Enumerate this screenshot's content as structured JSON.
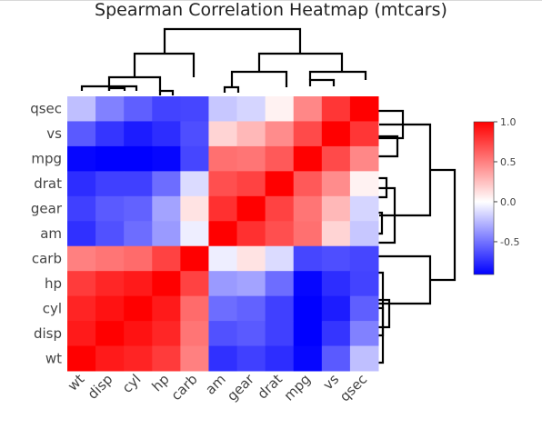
{
  "chart_data": {
    "type": "heatmap",
    "title": "Spearman Correlation Heatmap (mtcars)",
    "rows": [
      "qsec",
      "vs",
      "mpg",
      "drat",
      "gear",
      "am",
      "carb",
      "hp",
      "cyl",
      "disp",
      "wt"
    ],
    "columns": [
      "wt",
      "disp",
      "cyl",
      "hp",
      "carb",
      "am",
      "gear",
      "drat",
      "mpg",
      "vs",
      "qsec"
    ],
    "values": [
      [
        -0.23,
        -0.45,
        -0.57,
        -0.67,
        -0.66,
        -0.2,
        -0.15,
        0.05,
        0.47,
        0.79,
        1.0
      ],
      [
        -0.59,
        -0.72,
        -0.81,
        -0.75,
        -0.63,
        0.17,
        0.28,
        0.45,
        0.71,
        1.0,
        0.79
      ],
      [
        -0.89,
        -0.91,
        -0.91,
        -0.89,
        -0.66,
        0.56,
        0.54,
        0.65,
        1.0,
        0.71,
        0.47
      ],
      [
        -0.75,
        -0.68,
        -0.68,
        -0.52,
        -0.13,
        0.69,
        0.74,
        1.0,
        0.65,
        0.45,
        0.05
      ],
      [
        -0.68,
        -0.59,
        -0.56,
        -0.33,
        0.11,
        0.81,
        1.0,
        0.74,
        0.54,
        0.28,
        -0.15
      ],
      [
        -0.74,
        -0.62,
        -0.52,
        -0.36,
        -0.06,
        1.0,
        0.81,
        0.69,
        0.56,
        0.17,
        -0.2
      ],
      [
        0.5,
        0.54,
        0.58,
        0.74,
        1.0,
        -0.06,
        0.11,
        -0.13,
        -0.66,
        -0.63,
        -0.66
      ],
      [
        0.77,
        0.85,
        0.9,
        1.0,
        0.74,
        -0.36,
        -0.33,
        -0.52,
        -0.89,
        -0.75,
        -0.67
      ],
      [
        0.86,
        0.93,
        1.0,
        0.9,
        0.58,
        -0.52,
        -0.56,
        -0.68,
        -0.91,
        -0.81,
        -0.57
      ],
      [
        0.9,
        1.0,
        0.93,
        0.85,
        0.54,
        -0.62,
        -0.59,
        -0.68,
        -0.91,
        -0.72,
        -0.45
      ],
      [
        1.0,
        0.9,
        0.86,
        0.77,
        0.5,
        -0.74,
        -0.68,
        -0.75,
        -0.89,
        -0.59,
        -0.23
      ]
    ],
    "colorscale": {
      "min": -0.91,
      "max": 1.0,
      "low": "#0000ff",
      "mid": "#ffffff",
      "high": "#ff0000"
    },
    "colorbar_ticks": [
      "1.0",
      "0.5",
      "0.0",
      "-0.5"
    ],
    "colorbar_tick_values": [
      1.0,
      0.5,
      0.0,
      -0.5
    ],
    "dendrograms": [
      "top",
      "right"
    ]
  }
}
